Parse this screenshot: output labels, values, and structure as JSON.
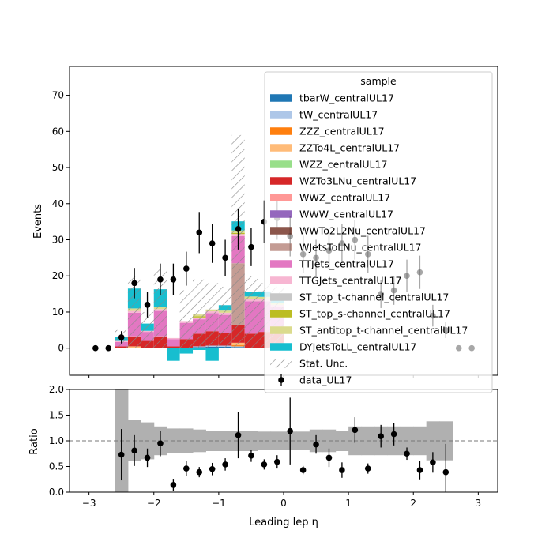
{
  "chart_data": {
    "type": "bar",
    "stacked": true,
    "xlabel": "Leading lep η",
    "ylabel": "Events",
    "ratio_ylabel": "Ratio",
    "xlim": [
      -3.3,
      3.3
    ],
    "ylim": [
      -7.5,
      78
    ],
    "ratio_ylim": [
      0,
      2
    ],
    "xticks": [
      -3,
      -2,
      -1,
      0,
      1,
      2,
      3
    ],
    "xticklabels": [
      "−3",
      "−2",
      "−1",
      "0",
      "1",
      "2",
      "3"
    ],
    "yticks": [
      0,
      10,
      20,
      30,
      40,
      50,
      60,
      70
    ],
    "ratio_yticks": [
      0,
      0.5,
      1,
      1.5,
      2
    ],
    "ratio_yticklabels": [
      "0.0",
      "0.5",
      "1.0",
      "1.5",
      "2.0"
    ],
    "ratio_reference_line": 1.0,
    "legend": {
      "title": "sample",
      "placement": "top-right"
    },
    "bin_edges": [
      -2.6,
      -2.4,
      -2.2,
      -2.0,
      -1.8,
      -1.6,
      -1.4,
      -1.2,
      -1.0,
      -0.8,
      -0.6,
      -0.4,
      -0.2,
      0.0,
      0.2,
      0.4,
      0.6,
      0.8,
      1.0,
      1.2,
      1.4,
      1.6,
      1.8,
      2.0,
      2.2,
      2.4,
      2.6
    ],
    "series": [
      {
        "name": "tbarW_centralUL17",
        "color": "#1f77b4",
        "values": [
          0,
          0,
          0,
          0,
          0,
          0,
          0.3,
          0.4,
          0.4,
          0.3,
          0,
          0,
          0,
          0,
          0,
          0,
          0,
          0,
          0,
          0,
          0,
          0,
          0,
          0,
          0,
          0
        ]
      },
      {
        "name": "tW_centralUL17",
        "color": "#aec7e8",
        "values": [
          0,
          0,
          0,
          0,
          0,
          0,
          0.2,
          0.3,
          0.3,
          0.2,
          0,
          0,
          0,
          0,
          0,
          0,
          0,
          0,
          0,
          0,
          0,
          0,
          0,
          0,
          0,
          0
        ]
      },
      {
        "name": "ZZZ_centralUL17",
        "color": "#ff7f0e",
        "values": [
          0,
          0,
          0,
          0,
          0,
          0,
          0,
          0,
          0,
          0.3,
          0,
          0,
          0,
          0,
          0,
          0,
          0,
          0,
          0,
          0,
          0,
          0,
          0,
          0,
          0,
          0
        ]
      },
      {
        "name": "ZZTo4L_centralUL17",
        "color": "#ffbb78",
        "values": [
          0,
          0.5,
          0,
          0,
          0,
          0,
          0,
          0,
          0,
          0.7,
          0,
          0,
          0,
          0,
          0,
          0,
          0,
          0,
          0,
          0,
          0,
          0,
          0,
          0,
          0,
          0
        ]
      },
      {
        "name": "WZZ_centralUL17",
        "color": "#98df8a",
        "values": [
          0,
          0,
          0,
          0,
          0,
          0,
          0,
          0,
          0,
          0,
          0,
          0,
          0,
          0,
          0,
          0,
          0,
          0,
          0,
          0,
          0,
          0,
          0,
          0,
          0,
          0
        ]
      },
      {
        "name": "WZTo3LNu_centralUL17",
        "color": "#d62728",
        "values": [
          0.5,
          2.5,
          2,
          3,
          0.5,
          2.5,
          3.5,
          4,
          3.5,
          5,
          4,
          4.5,
          4,
          0,
          0,
          0,
          0,
          0,
          0,
          0,
          0,
          0,
          0,
          0,
          0,
          0
        ]
      },
      {
        "name": "WWZ_centralUL17",
        "color": "#ff9896",
        "values": [
          0,
          0.3,
          0,
          0.3,
          0,
          0,
          0,
          0,
          0,
          0,
          0,
          0,
          0,
          0,
          0,
          0,
          0,
          0,
          0,
          0,
          0,
          0,
          0,
          0,
          0,
          0
        ]
      },
      {
        "name": "WWW_centralUL17",
        "color": "#9467bd",
        "values": [
          0,
          0,
          0,
          0,
          0,
          0,
          0,
          0,
          0,
          0,
          0,
          0,
          0,
          0,
          0,
          0,
          0,
          0,
          0,
          0,
          0,
          0,
          0,
          0,
          0,
          0
        ]
      },
      {
        "name": "WWTo2L2Nu_centralUL17",
        "color": "#8c564b",
        "values": [
          0,
          0,
          0,
          0,
          0,
          0,
          0,
          0,
          0,
          0,
          0,
          0,
          0,
          0,
          0,
          0,
          0,
          0,
          0,
          0,
          0,
          0,
          0,
          0,
          0,
          0
        ]
      },
      {
        "name": "WJetsToLNu_centralUL17",
        "color": "#c49c94",
        "values": [
          0,
          0,
          0,
          0,
          0,
          0,
          0,
          0,
          0,
          17,
          0,
          0,
          0,
          0,
          0,
          0,
          0,
          0,
          0,
          0,
          0,
          0,
          0,
          0,
          0,
          0
        ]
      },
      {
        "name": "TTJets_centralUL17",
        "color": "#e377c2",
        "values": [
          1.2,
          6.5,
          2.5,
          7,
          2,
          4.5,
          4,
          5,
          5,
          7.5,
          9,
          8.5,
          7.5,
          0,
          0,
          0,
          0,
          0,
          0,
          0,
          0,
          0,
          0,
          0,
          0,
          0
        ]
      },
      {
        "name": "TTGJets_centralUL17",
        "color": "#f7b6d2",
        "values": [
          0.3,
          0.5,
          0.3,
          0.5,
          0.3,
          0.5,
          0.5,
          0.5,
          0.6,
          0.6,
          0.6,
          0.6,
          0.5,
          0,
          0,
          0,
          0,
          0,
          0,
          0,
          0,
          0,
          0,
          0,
          0,
          0
        ]
      },
      {
        "name": "ST_top_t-channel_centralUL17",
        "color": "#c7c7c7",
        "values": [
          0,
          0,
          0,
          0,
          0,
          0,
          0,
          0,
          0,
          0,
          0,
          0,
          0,
          0,
          0,
          0,
          0,
          0,
          0,
          0,
          0,
          0,
          0,
          0,
          0,
          0
        ]
      },
      {
        "name": "ST_top_s-channel_centralUL17",
        "color": "#bcbd22",
        "values": [
          0,
          0,
          0,
          0,
          0,
          0,
          0.3,
          0,
          0,
          0.3,
          0,
          0,
          0,
          0,
          0,
          0,
          0,
          0,
          0,
          0,
          0,
          0,
          0,
          0,
          0,
          0
        ]
      },
      {
        "name": "ST_antitop_t-channel_centralUL17",
        "color": "#dbdb8d",
        "values": [
          0,
          0.7,
          0,
          0.5,
          0,
          0,
          0.5,
          0.5,
          0.6,
          0.7,
          0.7,
          0.6,
          0.5,
          0,
          0,
          0,
          0,
          0,
          0,
          0,
          0,
          0,
          0,
          0,
          0,
          0
        ]
      },
      {
        "name": "DYJetsToLL_centralUL17",
        "color": "#17becf",
        "values": [
          1,
          5.5,
          2,
          5,
          -3.5,
          -1.5,
          -0.5,
          -3.5,
          1.5,
          2.5,
          1.2,
          1.5,
          1.5,
          0,
          0,
          0,
          0,
          0,
          0,
          0,
          0,
          0,
          0,
          0,
          0,
          0
        ]
      }
    ],
    "stat_unc": {
      "name": "Stat. Unc.",
      "lower": [
        0,
        0,
        0,
        0,
        0,
        0,
        0,
        0,
        0,
        0,
        0,
        0,
        0,
        0,
        0,
        0,
        0,
        0,
        0,
        0,
        0,
        0,
        0,
        0,
        0,
        0
      ],
      "upper": [
        5,
        20,
        10,
        22,
        0,
        16,
        19,
        18,
        17,
        59,
        20,
        18,
        17,
        0,
        0,
        0,
        0,
        0,
        0,
        0,
        0,
        0,
        0,
        0,
        0,
        0
      ]
    },
    "data": {
      "name": "data_UL17",
      "x": [
        -2.9,
        -2.7,
        -2.5,
        -2.3,
        -2.1,
        -1.9,
        -1.7,
        -1.5,
        -1.3,
        -1.1,
        -0.9,
        -0.7,
        -0.5,
        -0.3,
        -0.1,
        0.1,
        0.3,
        0.5,
        0.7,
        0.9,
        1.1,
        1.3,
        1.5,
        1.7,
        1.9,
        2.1,
        2.3,
        2.5,
        2.7,
        2.9
      ],
      "y": [
        0,
        0,
        3,
        18,
        12,
        19,
        19,
        22,
        32,
        29,
        25,
        33,
        28,
        35,
        36,
        31,
        26,
        25,
        27,
        29,
        30,
        26,
        15,
        16,
        20,
        21,
        9,
        5,
        0,
        0
      ],
      "err": [
        0,
        0,
        1.7,
        4.2,
        3.5,
        4.4,
        4.4,
        4.7,
        5.7,
        5.4,
        5,
        5.7,
        5.3,
        5.9,
        6,
        5.6,
        5.1,
        5,
        5.2,
        5.4,
        5.5,
        5.1,
        3.9,
        4,
        4.5,
        4.6,
        3,
        2.2,
        0,
        0
      ],
      "visible_count": 15
    },
    "ratio": {
      "x": [
        -2.5,
        -2.3,
        -2.1,
        -1.9,
        -1.7,
        -1.5,
        -1.3,
        -1.1,
        -0.9,
        -0.7,
        -0.5,
        -0.3,
        -0.1,
        0.1,
        0.3,
        0.5,
        0.7,
        0.9,
        1.1,
        1.3,
        1.5,
        1.7,
        1.9,
        2.1,
        2.3,
        2.5
      ],
      "y": [
        0.73,
        0.81,
        0.67,
        0.95,
        0.14,
        0.46,
        0.39,
        0.45,
        0.54,
        1.11,
        0.71,
        0.54,
        0.59,
        1.19,
        0.43,
        0.93,
        0.67,
        0.43,
        1.21,
        0.46,
        1.09,
        1.13,
        0.75,
        0.43,
        0.58,
        0.39
      ],
      "err": [
        0.5,
        0.3,
        0.18,
        0.25,
        0.12,
        0.15,
        0.1,
        0.12,
        0.12,
        0.45,
        0.12,
        0.1,
        0.13,
        0.65,
        0.08,
        0.18,
        0.18,
        0.15,
        0.25,
        0.1,
        0.22,
        0.22,
        0.12,
        0.18,
        0.2,
        0.55
      ],
      "band_lower": [
        0,
        0.6,
        0.64,
        0.72,
        0.76,
        0.76,
        0.78,
        0.8,
        0.8,
        0.8,
        0.8,
        0.82,
        0.82,
        0.82,
        0.82,
        0.78,
        0.78,
        0.8,
        0.72,
        0.72,
        0.72,
        0.72,
        0.72,
        0.72,
        0.62,
        0.62
      ],
      "band_upper": [
        2,
        1.4,
        1.36,
        1.28,
        1.24,
        1.24,
        1.22,
        1.2,
        1.2,
        1.2,
        1.2,
        1.18,
        1.18,
        1.18,
        1.18,
        1.22,
        1.22,
        1.2,
        1.28,
        1.28,
        1.28,
        1.28,
        1.28,
        1.28,
        1.38,
        1.38
      ]
    }
  }
}
